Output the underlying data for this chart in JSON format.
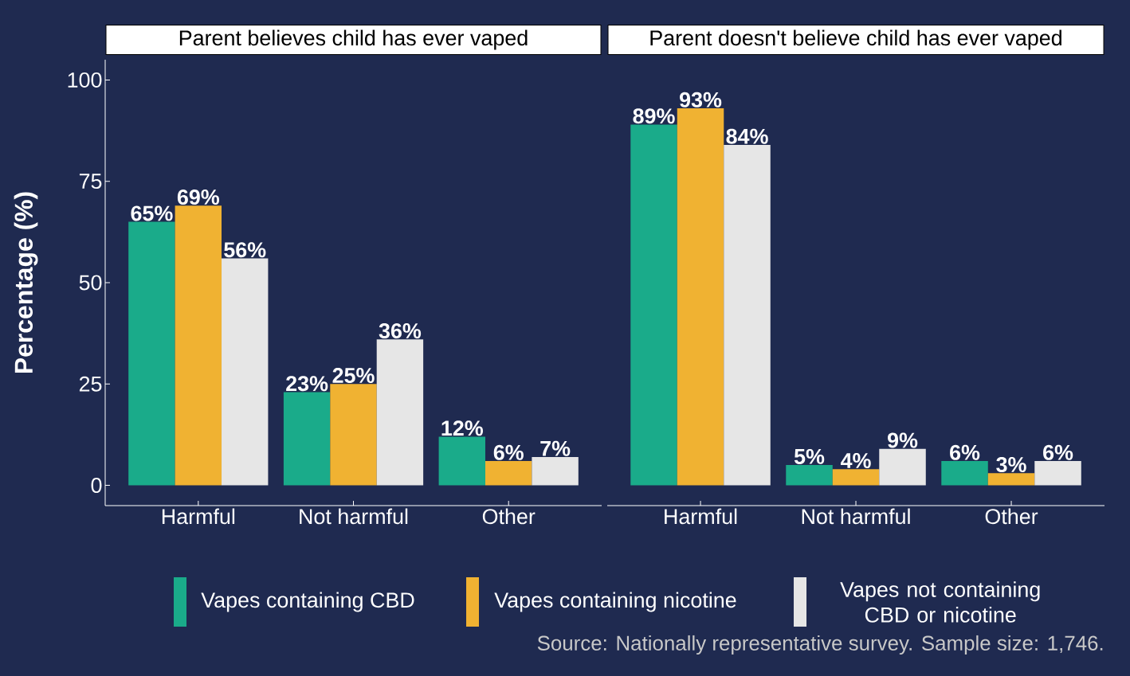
{
  "chart_data": [
    {
      "type": "bar",
      "title": "Parent believes child has ever vaped",
      "ylabel": "Percentage (%)",
      "categories": [
        "Harmful",
        "Not harmful",
        "Other"
      ],
      "ylim": [
        -5,
        105
      ],
      "yticks": [
        0,
        25,
        50,
        75,
        100
      ],
      "legend": "bottom",
      "series": [
        {
          "name": "Vapes containing CBD",
          "color": "#1aab8a",
          "values": [
            65,
            23,
            12
          ],
          "value_labels": [
            "65%",
            "23%",
            "12%"
          ]
        },
        {
          "name": "Vapes containing nicotine",
          "color": "#f0b232",
          "values": [
            69,
            25,
            6
          ],
          "value_labels": [
            "69%",
            "25%",
            "6%"
          ]
        },
        {
          "name": "Vapes not containing CBD or nicotine",
          "color": "#e6e6e6",
          "values": [
            56,
            36,
            7
          ],
          "value_labels": [
            "56%",
            "36%",
            "7%"
          ]
        }
      ]
    },
    {
      "type": "bar",
      "title": "Parent doesn't believe child has ever vaped",
      "categories": [
        "Harmful",
        "Not harmful",
        "Other"
      ],
      "tick_labels": "x",
      "annotations": [
        "Source: Nationally representative survey. Sample size: 1,746."
      ],
      "series": [
        {
          "color": "#1aab8a",
          "values": [
            89,
            5,
            6
          ],
          "value_labels": [
            "89%",
            "5%",
            "6%"
          ]
        },
        {
          "color": "#f0b232",
          "values": [
            93,
            4,
            3
          ],
          "value_labels": [
            "93%",
            "4%",
            "3%"
          ]
        },
        {
          "color": "#e6e6e6",
          "values": [
            84,
            9,
            6
          ],
          "value_labels": [
            "84%",
            "9%",
            "6%"
          ]
        }
      ]
    }
  ]
}
